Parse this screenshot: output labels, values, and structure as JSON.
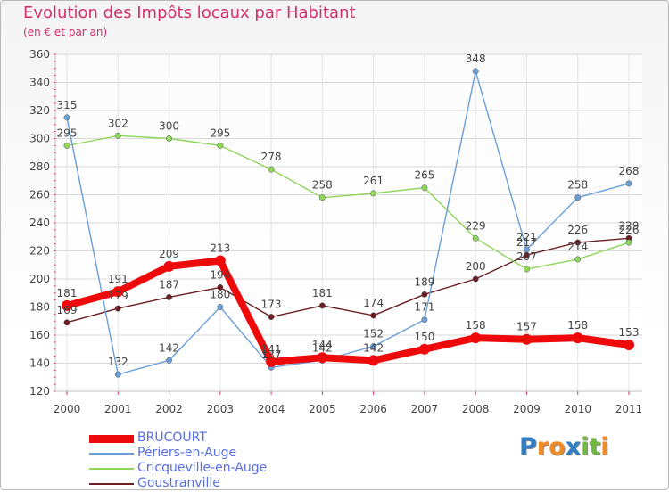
{
  "title": "Evolution des Impôts locaux par Habitant",
  "subtitle": "(en € et par an)",
  "logo": {
    "text": "Proxiti",
    "letters": [
      "P",
      "r",
      "o",
      "x",
      "i",
      "t",
      "i"
    ],
    "colors": [
      "#2f7fc8",
      "#f08a24",
      "#f08a24",
      "#2f7fc8",
      "#6fb83b",
      "#6fb83b",
      "#f08a24"
    ]
  },
  "chart_data": {
    "type": "line",
    "title": "Evolution des Impôts locaux par Habitant",
    "subtitle": "(en € et par an)",
    "xlabel": "",
    "ylabel": "",
    "x": [
      "2000",
      "2001",
      "2002",
      "2003",
      "2004",
      "2005",
      "2006",
      "2007",
      "2008",
      "2009",
      "2010",
      "2011"
    ],
    "ylim": [
      120,
      360
    ],
    "yticks": [
      120,
      140,
      160,
      180,
      200,
      220,
      240,
      260,
      280,
      300,
      320,
      340,
      360
    ],
    "grid": true,
    "legend_position": "bottom-left",
    "series": [
      {
        "name": "Goustranville",
        "color": "#6b1f25",
        "values": [
          169,
          179,
          187,
          194,
          173,
          181,
          174,
          189,
          200,
          217,
          226,
          229
        ],
        "labels": [
          "169",
          "179",
          "187",
          "194",
          "173",
          "181",
          "174",
          "189",
          "200",
          "217",
          "226",
          "229"
        ]
      },
      {
        "name": "Cricqueville-en-Auge",
        "color": "#8fd65a",
        "values": [
          295,
          302,
          300,
          295,
          278,
          258,
          261,
          265,
          229,
          207,
          214,
          226
        ],
        "labels": [
          "295",
          "302",
          "300",
          "295",
          "278",
          "258",
          "261",
          "265",
          "229",
          "207",
          "214",
          "226"
        ]
      },
      {
        "name": "Périers-en-Auge",
        "color": "#6a9fd8",
        "values": [
          315,
          132,
          142,
          180,
          137,
          142,
          152,
          171,
          348,
          221,
          258,
          268
        ],
        "labels": [
          "315",
          "132",
          "142",
          "180",
          "137",
          "142",
          "152",
          "171",
          "348",
          "221",
          "258",
          "268"
        ]
      },
      {
        "name": "BRUCOURT",
        "color": "#ee0a0a",
        "values": [
          181,
          191,
          209,
          213,
          141,
          144,
          142,
          150,
          158,
          157,
          158,
          153
        ],
        "labels": [
          "181",
          "191",
          "209",
          "213",
          "141",
          "144",
          "142",
          "150",
          "158",
          "157",
          "158",
          "153"
        ]
      }
    ]
  },
  "legend": [
    {
      "name": "BRUCOURT",
      "color": "#ee0a0a"
    },
    {
      "name": "Périers-en-Auge",
      "color": "#6a9fd8"
    },
    {
      "name": "Cricqueville-en-Auge",
      "color": "#8fd65a"
    },
    {
      "name": "Goustranville",
      "color": "#6b1f25"
    }
  ]
}
